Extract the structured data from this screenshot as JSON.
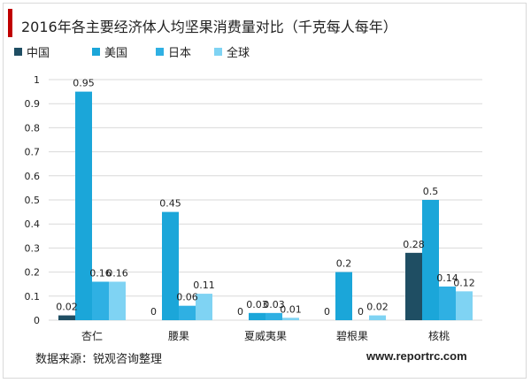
{
  "chart_data": {
    "type": "bar",
    "title": "2016年各主要经济体人均坚果消费量对比（千克每人每年）",
    "categories": [
      "杏仁",
      "腰果",
      "夏威夷果",
      "碧根果",
      "核桃"
    ],
    "series": [
      {
        "name": "中国",
        "color": "#1f4e63",
        "values": [
          0.02,
          0,
          0,
          0,
          0.28
        ]
      },
      {
        "name": "美国",
        "color": "#1ba6d9",
        "values": [
          0.95,
          0.45,
          0.03,
          0.2,
          0.5
        ]
      },
      {
        "name": "日本",
        "color": "#2fb0e3",
        "values": [
          0.16,
          0.06,
          0.03,
          0,
          0.14
        ]
      },
      {
        "name": "全球",
        "color": "#7fd3f3",
        "values": [
          0.16,
          0.11,
          0.01,
          0.02,
          0.12
        ]
      }
    ],
    "data_labels": [
      [
        "0.02",
        "0.95",
        "0.16",
        "0.16"
      ],
      [
        "0",
        "0.45",
        "0.06",
        "0.11"
      ],
      [
        "0",
        "0.03",
        "0.03",
        "0.01"
      ],
      [
        "0",
        "0.2",
        "0",
        "0.02"
      ],
      [
        "0.28",
        "0.5",
        "0.14",
        "0.12"
      ]
    ],
    "ylim": [
      0,
      1
    ],
    "yticks": [
      "0",
      "0.1",
      "0.2",
      "0.3",
      "0.4",
      "0.5",
      "0.6",
      "0.7",
      "0.8",
      "0.9",
      "1"
    ],
    "grid": true,
    "legend_position": "top-left"
  },
  "footer": {
    "source": "数据来源：锐观咨询整理",
    "website": "www.reportrc.com"
  },
  "colors": {
    "accent": "#c00000",
    "gridline": "#d9d9d9"
  }
}
